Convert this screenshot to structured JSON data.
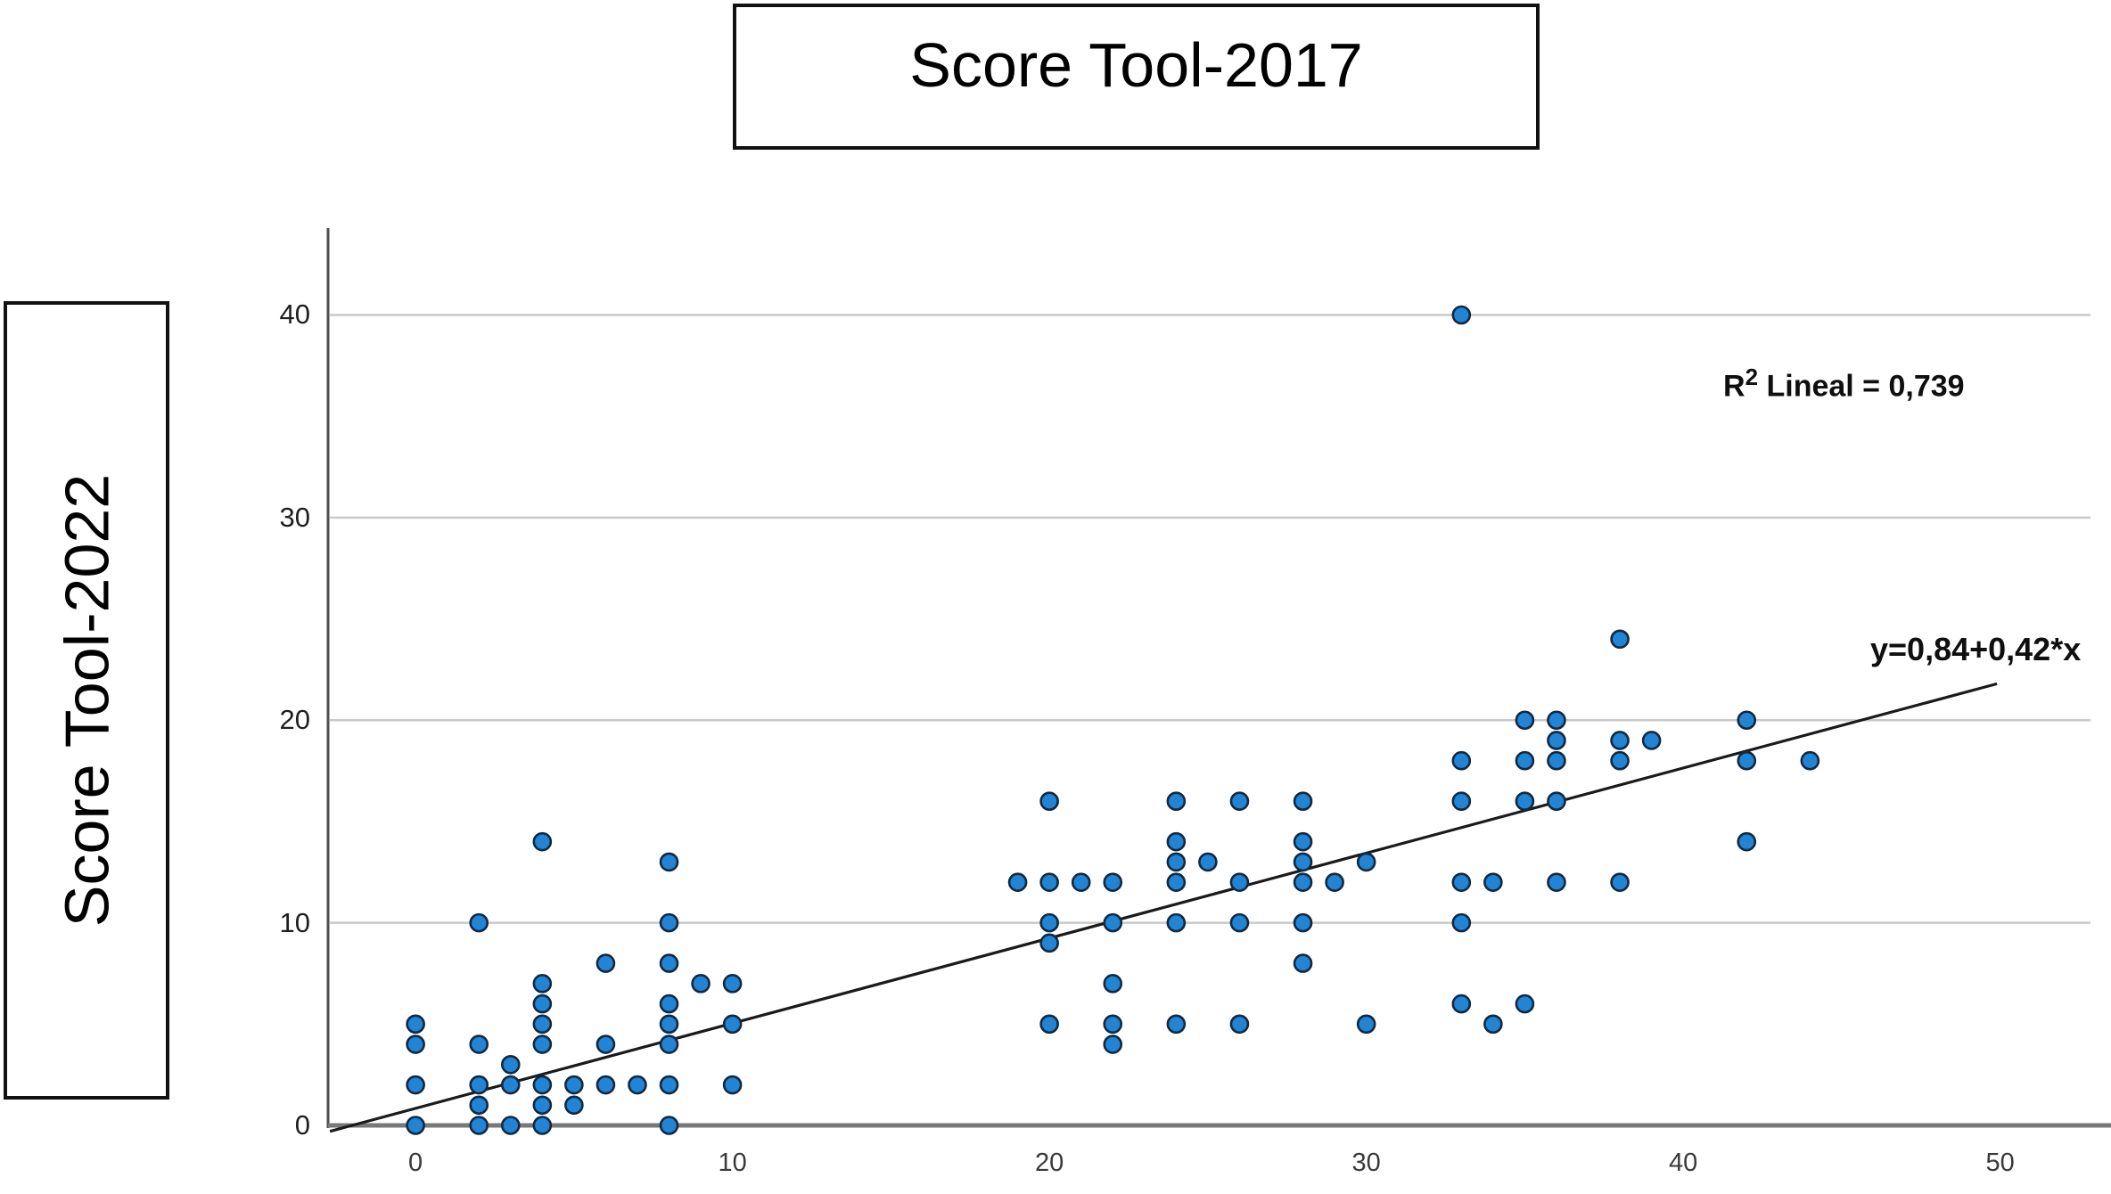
{
  "title": "Score Tool-2017",
  "y_axis_label": "Score Tool-2022",
  "annotations": {
    "r2_base": "R",
    "r2_exponent": "2",
    "r2_text": " Lineal = 0,739",
    "equation": "y=0,84+0,42*x"
  },
  "colors": {
    "dot_fill": "#2184d4",
    "dot_stroke": "#122940",
    "gridline": "#c9c9c9",
    "baseline": "#787878",
    "y_axis_line": "#4f4f4f",
    "regression_line": "#1a1a1a"
  },
  "chart_data": {
    "type": "scatter",
    "title": "Score Tool-2017",
    "xlabel": "Score Tool-2017",
    "ylabel": "Score Tool-2022",
    "xlim": [
      -2.76,
      52.85
    ],
    "ylim": [
      0,
      44.2
    ],
    "xticks": [
      0,
      10,
      20,
      30,
      40,
      50
    ],
    "yticks": [
      0,
      10,
      20,
      30,
      40
    ],
    "grid": "horizontal-only",
    "legend": "none",
    "regression": {
      "equation_display": "y=0,84+0,42*x",
      "intercept": 0.84,
      "slope": 0.42,
      "r_squared": 0.739,
      "x_start": -2.7,
      "x_end": 49.9
    },
    "points": [
      [
        0,
        0
      ],
      [
        0,
        2
      ],
      [
        0,
        4
      ],
      [
        0,
        5
      ],
      [
        2,
        0
      ],
      [
        2,
        1
      ],
      [
        2,
        2
      ],
      [
        2,
        4
      ],
      [
        2,
        10
      ],
      [
        3,
        0
      ],
      [
        3,
        2
      ],
      [
        3,
        3
      ],
      [
        4,
        0
      ],
      [
        4,
        1
      ],
      [
        4,
        2
      ],
      [
        4,
        4
      ],
      [
        4,
        5
      ],
      [
        4,
        6
      ],
      [
        4,
        7
      ],
      [
        4,
        14
      ],
      [
        5,
        1
      ],
      [
        5,
        2
      ],
      [
        6,
        2
      ],
      [
        6,
        4
      ],
      [
        6,
        8
      ],
      [
        7,
        2
      ],
      [
        8,
        0
      ],
      [
        8,
        2
      ],
      [
        8,
        4
      ],
      [
        8,
        5
      ],
      [
        8,
        6
      ],
      [
        8,
        8
      ],
      [
        8,
        10
      ],
      [
        8,
        13
      ],
      [
        9,
        7
      ],
      [
        10,
        2
      ],
      [
        10,
        5
      ],
      [
        10,
        7
      ],
      [
        19,
        12
      ],
      [
        20,
        5
      ],
      [
        20,
        9
      ],
      [
        20,
        10
      ],
      [
        20,
        12
      ],
      [
        20,
        16
      ],
      [
        21,
        12
      ],
      [
        22,
        4
      ],
      [
        22,
        5
      ],
      [
        22,
        7
      ],
      [
        22,
        10
      ],
      [
        22,
        12
      ],
      [
        24,
        5
      ],
      [
        24,
        10
      ],
      [
        24,
        12
      ],
      [
        24,
        13
      ],
      [
        24,
        14
      ],
      [
        24,
        16
      ],
      [
        25,
        13
      ],
      [
        26,
        5
      ],
      [
        26,
        10
      ],
      [
        26,
        12
      ],
      [
        26,
        16
      ],
      [
        28,
        8
      ],
      [
        28,
        10
      ],
      [
        28,
        12
      ],
      [
        28,
        13
      ],
      [
        28,
        14
      ],
      [
        28,
        16
      ],
      [
        29,
        12
      ],
      [
        30,
        5
      ],
      [
        30,
        13
      ],
      [
        33,
        6
      ],
      [
        33,
        10
      ],
      [
        33,
        12
      ],
      [
        33,
        16
      ],
      [
        33,
        18
      ],
      [
        33,
        40
      ],
      [
        34,
        5
      ],
      [
        34,
        12
      ],
      [
        35,
        6
      ],
      [
        35,
        16
      ],
      [
        35,
        18
      ],
      [
        35,
        20
      ],
      [
        36,
        12
      ],
      [
        36,
        16
      ],
      [
        36,
        18
      ],
      [
        36,
        19
      ],
      [
        36,
        20
      ],
      [
        38,
        12
      ],
      [
        38,
        18
      ],
      [
        38,
        19
      ],
      [
        38,
        24
      ],
      [
        39,
        19
      ],
      [
        42,
        14
      ],
      [
        42,
        18
      ],
      [
        42,
        20
      ],
      [
        44,
        18
      ]
    ]
  }
}
